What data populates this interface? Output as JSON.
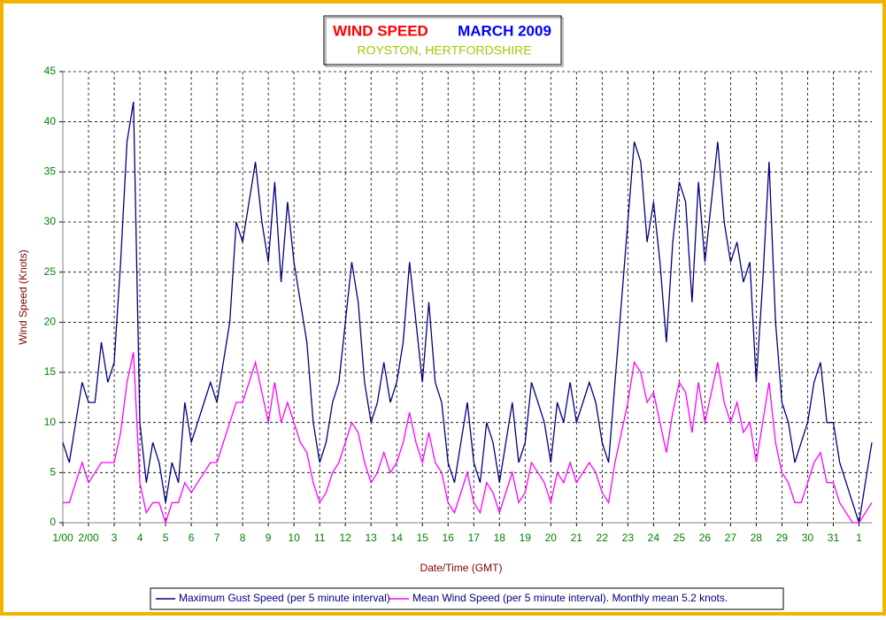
{
  "chart_data": {
    "type": "line",
    "title": "WIND SPEED",
    "title_month": "MARCH 2009",
    "subtitle": "ROYSTON, HERTFORDSHIRE",
    "xlabel": "Date/Time (GMT)",
    "ylabel": "Wind Speed (Knots)",
    "grid": true,
    "legend": "bottom",
    "xlim": [
      0,
      31.5
    ],
    "ylim": [
      0,
      45
    ],
    "yticks": [
      0,
      5,
      10,
      15,
      20,
      25,
      30,
      35,
      40,
      45
    ],
    "xticks": [
      {
        "value": 0,
        "label": "1/00"
      },
      {
        "value": 1,
        "label": "2/00"
      },
      {
        "value": 2,
        "label": "3"
      },
      {
        "value": 3,
        "label": "4"
      },
      {
        "value": 4,
        "label": "5"
      },
      {
        "value": 5,
        "label": "6"
      },
      {
        "value": 6,
        "label": "7"
      },
      {
        "value": 7,
        "label": "8"
      },
      {
        "value": 8,
        "label": "9"
      },
      {
        "value": 9,
        "label": "10"
      },
      {
        "value": 10,
        "label": "11"
      },
      {
        "value": 11,
        "label": "12"
      },
      {
        "value": 12,
        "label": "13"
      },
      {
        "value": 13,
        "label": "14"
      },
      {
        "value": 14,
        "label": "15"
      },
      {
        "value": 15,
        "label": "16"
      },
      {
        "value": 16,
        "label": "17"
      },
      {
        "value": 17,
        "label": "18"
      },
      {
        "value": 18,
        "label": "19"
      },
      {
        "value": 19,
        "label": "20"
      },
      {
        "value": 20,
        "label": "21"
      },
      {
        "value": 21,
        "label": "22"
      },
      {
        "value": 22,
        "label": "23"
      },
      {
        "value": 23,
        "label": "24"
      },
      {
        "value": 24,
        "label": "25"
      },
      {
        "value": 25,
        "label": "26"
      },
      {
        "value": 26,
        "label": "27"
      },
      {
        "value": 27,
        "label": "28"
      },
      {
        "value": 28,
        "label": "29"
      },
      {
        "value": 29,
        "label": "30"
      },
      {
        "value": 30,
        "label": "31"
      },
      {
        "value": 31,
        "label": "1"
      }
    ],
    "x": [
      0,
      0.25,
      0.5,
      0.75,
      1,
      1.25,
      1.5,
      1.75,
      2,
      2.25,
      2.5,
      2.75,
      3,
      3.25,
      3.5,
      3.75,
      4,
      4.25,
      4.5,
      4.75,
      5,
      5.25,
      5.5,
      5.75,
      6,
      6.25,
      6.5,
      6.75,
      7,
      7.25,
      7.5,
      7.75,
      8,
      8.25,
      8.5,
      8.75,
      9,
      9.25,
      9.5,
      9.75,
      10,
      10.25,
      10.5,
      10.75,
      11,
      11.25,
      11.5,
      11.75,
      12,
      12.25,
      12.5,
      12.75,
      13,
      13.25,
      13.5,
      13.75,
      14,
      14.25,
      14.5,
      14.75,
      15,
      15.25,
      15.5,
      15.75,
      16,
      16.25,
      16.5,
      16.75,
      17,
      17.25,
      17.5,
      17.75,
      18,
      18.25,
      18.5,
      18.75,
      19,
      19.25,
      19.5,
      19.75,
      20,
      20.25,
      20.5,
      20.75,
      21,
      21.25,
      21.5,
      21.75,
      22,
      22.25,
      22.5,
      22.75,
      23,
      23.25,
      23.5,
      23.75,
      24,
      24.25,
      24.5,
      24.75,
      25,
      25.25,
      25.5,
      25.75,
      26,
      26.25,
      26.5,
      26.75,
      27,
      27.25,
      27.5,
      27.75,
      28,
      28.25,
      28.5,
      28.75,
      29,
      29.25,
      29.5,
      29.75,
      30,
      30.25,
      30.5,
      30.75,
      31,
      31.25,
      31.5
    ],
    "series": [
      {
        "name": "Maximum Gust Speed (per 5 minute interval)",
        "color": "#000080",
        "values": [
          8,
          6,
          10,
          14,
          12,
          12,
          18,
          14,
          16,
          26,
          38,
          42,
          10,
          4,
          8,
          6,
          2,
          6,
          4,
          12,
          8,
          10,
          12,
          14,
          12,
          16,
          20,
          30,
          28,
          32,
          36,
          30,
          26,
          34,
          24,
          32,
          26,
          22,
          18,
          10,
          6,
          8,
          12,
          14,
          20,
          26,
          22,
          14,
          10,
          12,
          16,
          12,
          14,
          18,
          26,
          20,
          14,
          22,
          14,
          12,
          6,
          4,
          8,
          12,
          6,
          4,
          10,
          8,
          4,
          8,
          12,
          6,
          8,
          14,
          12,
          10,
          6,
          12,
          10,
          14,
          10,
          12,
          14,
          12,
          8,
          6,
          14,
          22,
          30,
          38,
          36,
          28,
          32,
          26,
          18,
          28,
          34,
          32,
          22,
          34,
          26,
          32,
          38,
          30,
          26,
          28,
          24,
          26,
          14,
          24,
          36,
          20,
          12,
          10,
          6,
          8,
          10,
          14,
          16,
          10,
          10,
          6,
          4,
          2,
          0,
          4,
          8
        ]
      },
      {
        "name": "Mean Wind Speed (per 5 minute interval). Monthly mean 5.2 knots.",
        "color": "#ff00ff",
        "values": [
          2,
          2,
          4,
          6,
          4,
          5,
          6,
          6,
          6,
          9,
          14,
          17,
          4,
          1,
          2,
          2,
          0,
          2,
          2,
          4,
          3,
          4,
          5,
          6,
          6,
          8,
          10,
          12,
          12,
          14,
          16,
          13,
          10,
          14,
          10,
          12,
          10,
          8,
          7,
          4,
          2,
          3,
          5,
          6,
          8,
          10,
          9,
          6,
          4,
          5,
          7,
          5,
          6,
          8,
          11,
          8,
          6,
          9,
          6,
          5,
          2,
          1,
          3,
          5,
          2,
          1,
          4,
          3,
          1,
          3,
          5,
          2,
          3,
          6,
          5,
          4,
          2,
          5,
          4,
          6,
          4,
          5,
          6,
          5,
          3,
          2,
          6,
          9,
          12,
          16,
          15,
          12,
          13,
          10,
          7,
          11,
          14,
          13,
          9,
          14,
          10,
          13,
          16,
          12,
          10,
          12,
          9,
          10,
          6,
          10,
          14,
          8,
          5,
          4,
          2,
          2,
          4,
          6,
          7,
          4,
          4,
          2,
          1,
          0,
          0,
          1,
          2
        ]
      }
    ]
  }
}
